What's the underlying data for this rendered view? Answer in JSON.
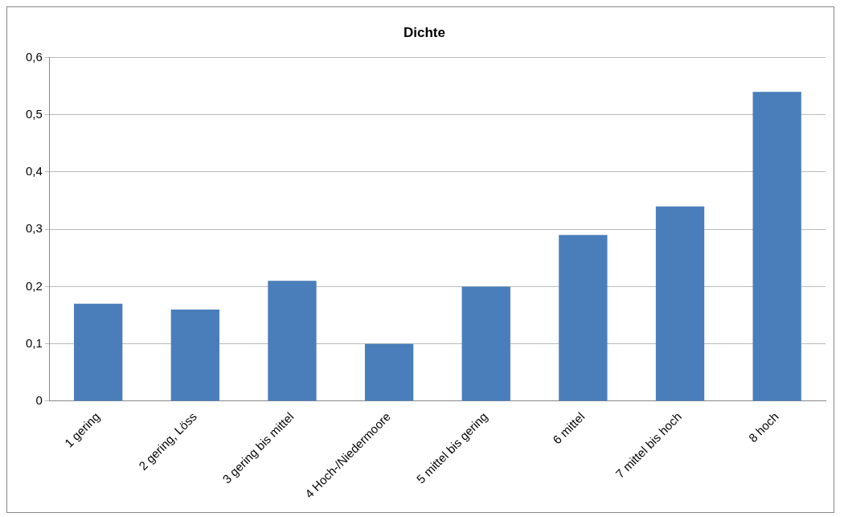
{
  "chart_data": {
    "type": "bar",
    "title": "Dichte",
    "categories": [
      "1 gering",
      "2 gering, Löss",
      "3 gering bis mittel",
      "4 Hoch-/Niedermoore",
      "5 mittel bis gering",
      "6 mittel",
      "7 mittel bis hoch",
      "8 hoch"
    ],
    "values": [
      0.17,
      0.16,
      0.21,
      0.1,
      0.2,
      0.29,
      0.34,
      0.54
    ],
    "color": "#4a7ebb",
    "ylim": [
      0,
      0.6
    ],
    "yticks": [
      0,
      {
        "value": 0.1,
        "label": "0,1"
      },
      {
        "value": 0.2,
        "label": "0,2"
      },
      {
        "value": 0.3,
        "label": "0,3"
      },
      {
        "value": 0.4,
        "label": "0,4"
      },
      {
        "value": 0.5,
        "label": "0,5"
      },
      {
        "value": 0.6,
        "label": "0,6"
      }
    ],
    "grid": "y"
  }
}
